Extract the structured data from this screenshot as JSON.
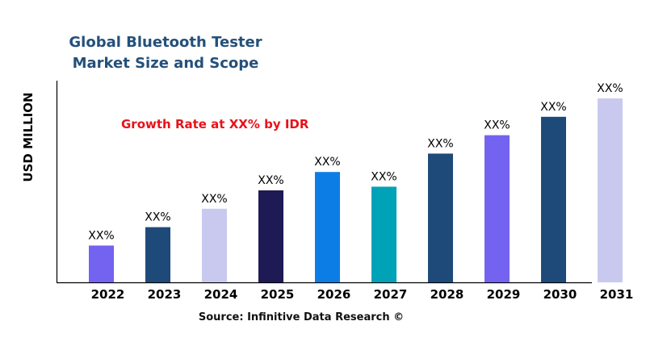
{
  "chart_data": {
    "type": "bar",
    "title": "Global Bluetooth Tester\nMarket Size and Scope",
    "title_lines": [
      "Global Bluetooth Tester",
      "Market Size and Scope"
    ],
    "ylabel": "USD MILLION",
    "xlabel": "",
    "annotation": "Growth Rate at XX% by IDR",
    "source": "Source: Infinitive Data Research ©",
    "categories": [
      "2022",
      "2023",
      "2024",
      "2025",
      "2026",
      "2027",
      "2028",
      "2029",
      "2030",
      "2031"
    ],
    "values": [
      20,
      30,
      40,
      50,
      60,
      52,
      70,
      80,
      90,
      100
    ],
    "data_labels": [
      "XX%",
      "XX%",
      "XX%",
      "XX%",
      "XX%",
      "XX%",
      "XX%",
      "XX%",
      "XX%",
      "XX%"
    ],
    "colors": [
      "#7363f0",
      "#1e4a7a",
      "#c9c9f0",
      "#1e1a55",
      "#0d7de6",
      "#00a2b8",
      "#1e4a7a",
      "#7363f0",
      "#1e4a7a",
      "#c9c9f0"
    ],
    "ylim": [
      0,
      110
    ],
    "grid": false,
    "legend": "none"
  }
}
